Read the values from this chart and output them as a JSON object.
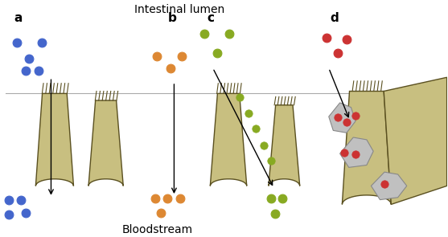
{
  "title_top": "Intestinal lumen",
  "title_bottom": "Bloodstream",
  "label_a": "a",
  "label_b": "b",
  "label_c": "c",
  "label_d": "d",
  "bg_color": "#ffffff",
  "cell_fill": "#c8bf80",
  "cell_edge": "#5a5020",
  "lymph_fill": "#c8c8c8",
  "lymph_edge": "#888888",
  "blue_dot": "#4466cc",
  "orange_dot": "#dd8833",
  "green_dot": "#88aa22",
  "red_dot": "#cc3333",
  "arrow_color": "#000000",
  "fontsize_label": 11,
  "fontsize_title": 10
}
